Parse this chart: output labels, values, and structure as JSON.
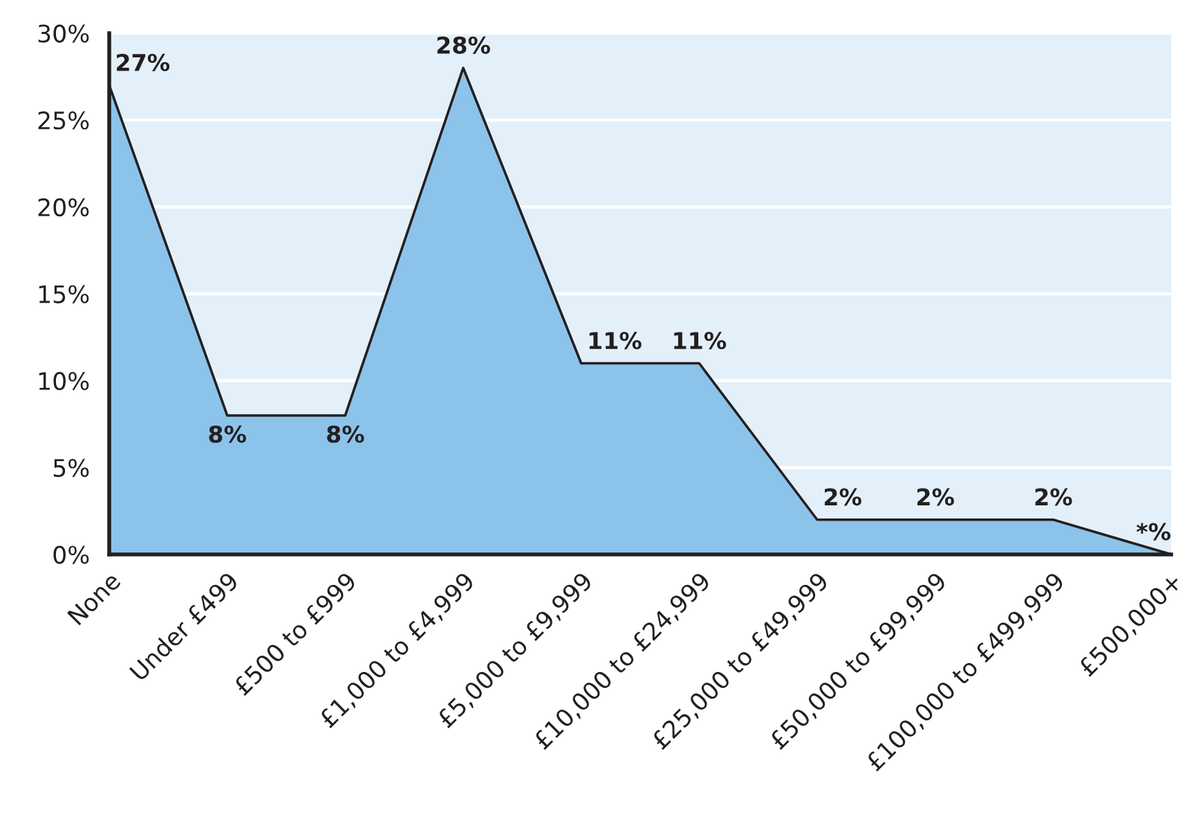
{
  "chart_data": {
    "type": "area",
    "categories": [
      "None",
      "Under £499",
      "£500 to £999",
      "£1,000 to £4,999",
      "£5,000 to £9,999",
      "£10,000 to £24,999",
      "£25,000 to £49,999",
      "£50,000 to £99,999",
      "£100,000 to £499,999",
      "£500,000+"
    ],
    "values": [
      27,
      8,
      8,
      28,
      11,
      11,
      2,
      2,
      2,
      0
    ],
    "value_labels": [
      "27%",
      "8%",
      "8%",
      "28%",
      "11%",
      "11%",
      "2%",
      "2%",
      "2%",
      "*%"
    ],
    "color": "#8cc3ea",
    "ylim": [
      0,
      30
    ],
    "yticks": [
      {
        "value": 0,
        "label": "0%"
      },
      {
        "value": 5,
        "label": "5%"
      },
      {
        "value": 10,
        "label": "10%"
      },
      {
        "value": 15,
        "label": "15%"
      },
      {
        "value": 20,
        "label": "20%"
      },
      {
        "value": 25,
        "label": "25%"
      },
      {
        "value": 30,
        "label": "30%"
      }
    ],
    "grid": "y",
    "line_style": "solid"
  }
}
